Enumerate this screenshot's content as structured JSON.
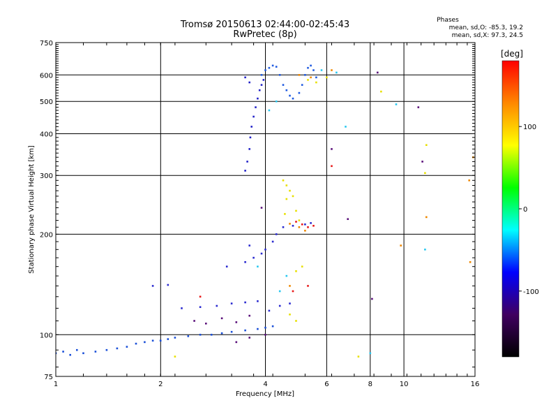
{
  "chart_data": {
    "type": "scatter",
    "title": "Tromsø 20150613 02:44:00-02:45:43",
    "subtitle": "RwPretec (8p)",
    "xlabel": "Frequency [MHz]",
    "ylabel": "Stationary phase Virtual Height [km]",
    "x_scale": "log2",
    "y_scale": "log",
    "xlim": [
      1,
      16
    ],
    "ylim": [
      75,
      750
    ],
    "x_ticks": [
      1,
      2,
      4,
      6,
      8,
      10,
      16
    ],
    "y_ticks": [
      75,
      100,
      200,
      300,
      400,
      500,
      600,
      750
    ],
    "x_gridlines": [
      2,
      4,
      6,
      8,
      10
    ],
    "y_gridlines": [
      100,
      200,
      300,
      400,
      500,
      600
    ],
    "grid": true,
    "legend": {
      "title": "Phases",
      "lines": [
        "mean, sd,O: -85.3, 19.2",
        "mean, sd,X:  97.3, 24.5"
      ]
    },
    "colorbar": {
      "label": "[deg]",
      "range": [
        -180,
        180
      ],
      "ticks": [
        100,
        0,
        -100
      ],
      "stops": [
        "#ff0000",
        "#ff8800",
        "#ffff00",
        "#00ff00",
        "#00ffff",
        "#0000ff",
        "#400060",
        "#000000"
      ]
    },
    "series": [
      {
        "color": "#1a4fd8",
        "points": [
          [
            1.0,
            88
          ],
          [
            1.05,
            89
          ],
          [
            1.1,
            87
          ],
          [
            1.15,
            90
          ],
          [
            1.2,
            88
          ],
          [
            1.3,
            89
          ],
          [
            1.4,
            90
          ],
          [
            1.5,
            91
          ],
          [
            1.6,
            92
          ],
          [
            1.7,
            94
          ],
          [
            1.8,
            95
          ],
          [
            1.9,
            96
          ],
          [
            2.0,
            96
          ],
          [
            2.1,
            97
          ],
          [
            2.2,
            98
          ],
          [
            2.4,
            99
          ],
          [
            2.6,
            100
          ],
          [
            2.8,
            100
          ],
          [
            3.0,
            101
          ],
          [
            3.2,
            102
          ],
          [
            3.5,
            103
          ],
          [
            3.8,
            104
          ],
          [
            4.0,
            105
          ],
          [
            4.2,
            106
          ]
        ]
      },
      {
        "color": "#2a2ad0",
        "points": [
          [
            2.3,
            120
          ],
          [
            2.6,
            121
          ],
          [
            2.9,
            122
          ],
          [
            3.2,
            124
          ],
          [
            3.5,
            125
          ],
          [
            3.8,
            126
          ],
          [
            4.1,
            118
          ],
          [
            4.4,
            122
          ],
          [
            4.7,
            124
          ],
          [
            1.9,
            140
          ],
          [
            2.1,
            141
          ],
          [
            3.1,
            160
          ],
          [
            3.5,
            165
          ],
          [
            3.7,
            170
          ],
          [
            3.9,
            175
          ],
          [
            4.0,
            180
          ],
          [
            4.2,
            190
          ],
          [
            3.6,
            185
          ],
          [
            4.3,
            200
          ],
          [
            4.5,
            210
          ],
          [
            4.8,
            212
          ],
          [
            5.2,
            214
          ],
          [
            5.4,
            216
          ]
        ]
      },
      {
        "color": "#2222c8",
        "points": [
          [
            3.5,
            310
          ],
          [
            3.55,
            330
          ],
          [
            3.6,
            360
          ],
          [
            3.62,
            390
          ],
          [
            3.65,
            420
          ],
          [
            3.7,
            450
          ],
          [
            3.75,
            480
          ],
          [
            3.8,
            510
          ],
          [
            3.85,
            540
          ],
          [
            3.9,
            560
          ],
          [
            3.95,
            580
          ],
          [
            3.6,
            570
          ],
          [
            3.5,
            590
          ]
        ]
      },
      {
        "color": "#1e5ae0",
        "points": [
          [
            3.9,
            600
          ],
          [
            4.0,
            620
          ],
          [
            4.1,
            630
          ],
          [
            4.2,
            640
          ],
          [
            4.3,
            635
          ],
          [
            4.4,
            600
          ],
          [
            4.5,
            560
          ],
          [
            4.6,
            540
          ],
          [
            4.7,
            520
          ],
          [
            4.8,
            510
          ],
          [
            5.0,
            530
          ],
          [
            5.1,
            560
          ],
          [
            5.2,
            600
          ],
          [
            5.3,
            630
          ],
          [
            5.4,
            640
          ],
          [
            5.5,
            620
          ],
          [
            5.6,
            590
          ]
        ]
      },
      {
        "color": "#28c8f0",
        "points": [
          [
            4.1,
            470
          ],
          [
            4.3,
            500
          ],
          [
            5.8,
            620
          ],
          [
            6.4,
            610
          ],
          [
            6.8,
            420
          ],
          [
            3.8,
            160
          ],
          [
            4.6,
            150
          ],
          [
            4.4,
            135
          ],
          [
            8.0,
            88
          ],
          [
            11.5,
            180
          ],
          [
            9.5,
            490
          ]
        ]
      },
      {
        "color": "#e8e000",
        "points": [
          [
            4.5,
            290
          ],
          [
            4.6,
            280
          ],
          [
            4.7,
            270
          ],
          [
            4.8,
            260
          ],
          [
            4.6,
            255
          ],
          [
            4.55,
            230
          ],
          [
            4.9,
            235
          ],
          [
            5.0,
            220
          ],
          [
            4.9,
            155
          ],
          [
            5.1,
            160
          ],
          [
            4.7,
            115
          ],
          [
            4.9,
            110
          ],
          [
            5.3,
            580
          ],
          [
            5.6,
            570
          ],
          [
            6.0,
            590
          ],
          [
            7.4,
            86
          ],
          [
            8.6,
            535
          ],
          [
            11.6,
            370
          ],
          [
            11.5,
            305
          ],
          [
            2.2,
            86
          ]
        ]
      },
      {
        "color": "#ee8800",
        "points": [
          [
            4.7,
            215
          ],
          [
            5.0,
            210
          ],
          [
            5.2,
            205
          ],
          [
            4.7,
            140
          ],
          [
            5.0,
            600
          ],
          [
            5.4,
            590
          ],
          [
            6.2,
            620
          ],
          [
            11.6,
            225
          ],
          [
            15.5,
            165
          ],
          [
            15.8,
            340
          ],
          [
            15.4,
            290
          ],
          [
            9.8,
            185
          ]
        ]
      },
      {
        "color": "#e81818",
        "points": [
          [
            4.9,
            218
          ],
          [
            5.1,
            214
          ],
          [
            5.3,
            210
          ],
          [
            5.5,
            212
          ],
          [
            4.8,
            135
          ],
          [
            6.2,
            320
          ],
          [
            2.6,
            130
          ],
          [
            5.3,
            140
          ]
        ]
      },
      {
        "color": "#5a107a",
        "points": [
          [
            2.5,
            110
          ],
          [
            2.7,
            108
          ],
          [
            3.0,
            112
          ],
          [
            3.3,
            109
          ],
          [
            3.6,
            114
          ],
          [
            3.3,
            95
          ],
          [
            3.6,
            98
          ],
          [
            4.0,
            100
          ],
          [
            3.9,
            240
          ],
          [
            6.2,
            360
          ],
          [
            6.9,
            222
          ],
          [
            8.1,
            128
          ],
          [
            11.3,
            330
          ],
          [
            8.4,
            610
          ],
          [
            11.0,
            480
          ]
        ]
      }
    ]
  }
}
